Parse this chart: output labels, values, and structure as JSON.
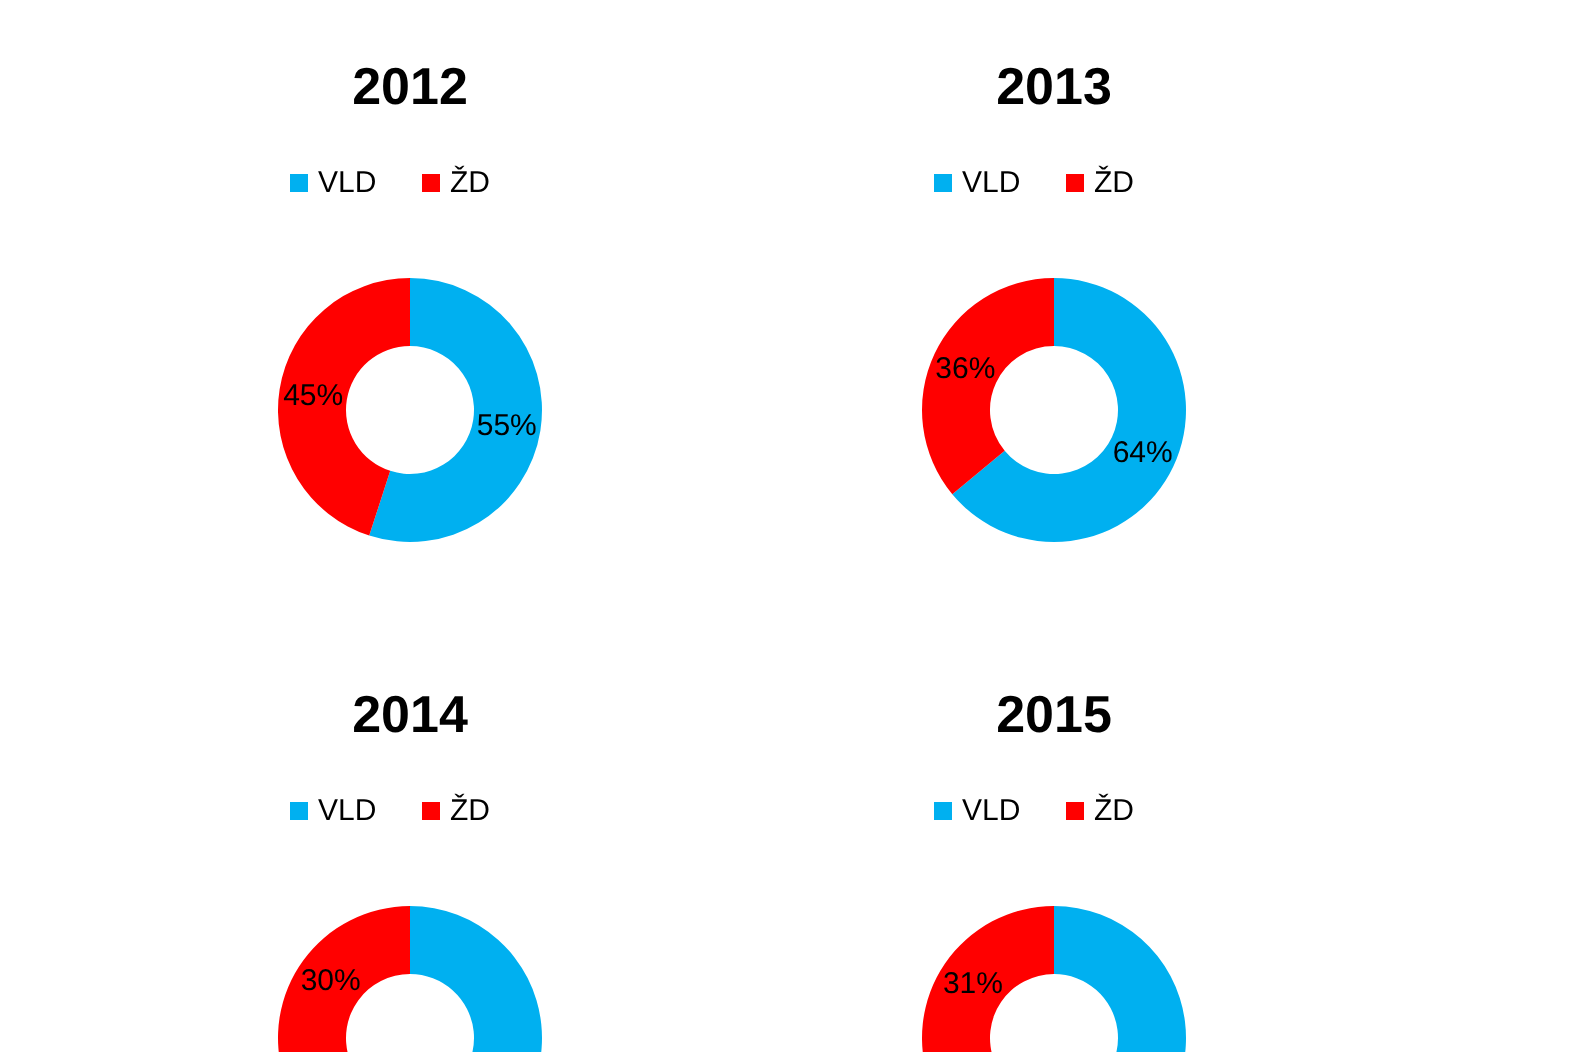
{
  "chart_data": [
    {
      "type": "donut",
      "title": "2012",
      "categories": [
        "VLD",
        "ŽD"
      ],
      "values": [
        55,
        45
      ],
      "colors": [
        "#00b0f0",
        "#ff0000"
      ],
      "legend": "top",
      "value_labels": [
        "55%",
        "45%"
      ]
    },
    {
      "type": "donut",
      "title": "2013",
      "categories": [
        "VLD",
        "ŽD"
      ],
      "values": [
        64,
        36
      ],
      "colors": [
        "#00b0f0",
        "#ff0000"
      ],
      "legend": "top",
      "value_labels": [
        "64%",
        "36%"
      ]
    },
    {
      "type": "donut",
      "title": "2014",
      "categories": [
        "VLD",
        "ŽD"
      ],
      "values": [
        70,
        30
      ],
      "colors": [
        "#00b0f0",
        "#ff0000"
      ],
      "legend": "top",
      "value_labels": [
        null,
        "30%"
      ]
    },
    {
      "type": "donut",
      "title": "2015",
      "categories": [
        "VLD",
        "ŽD"
      ],
      "values": [
        69,
        31
      ],
      "colors": [
        "#00b0f0",
        "#ff0000"
      ],
      "legend": "top",
      "value_labels": [
        null,
        "31%"
      ]
    }
  ]
}
